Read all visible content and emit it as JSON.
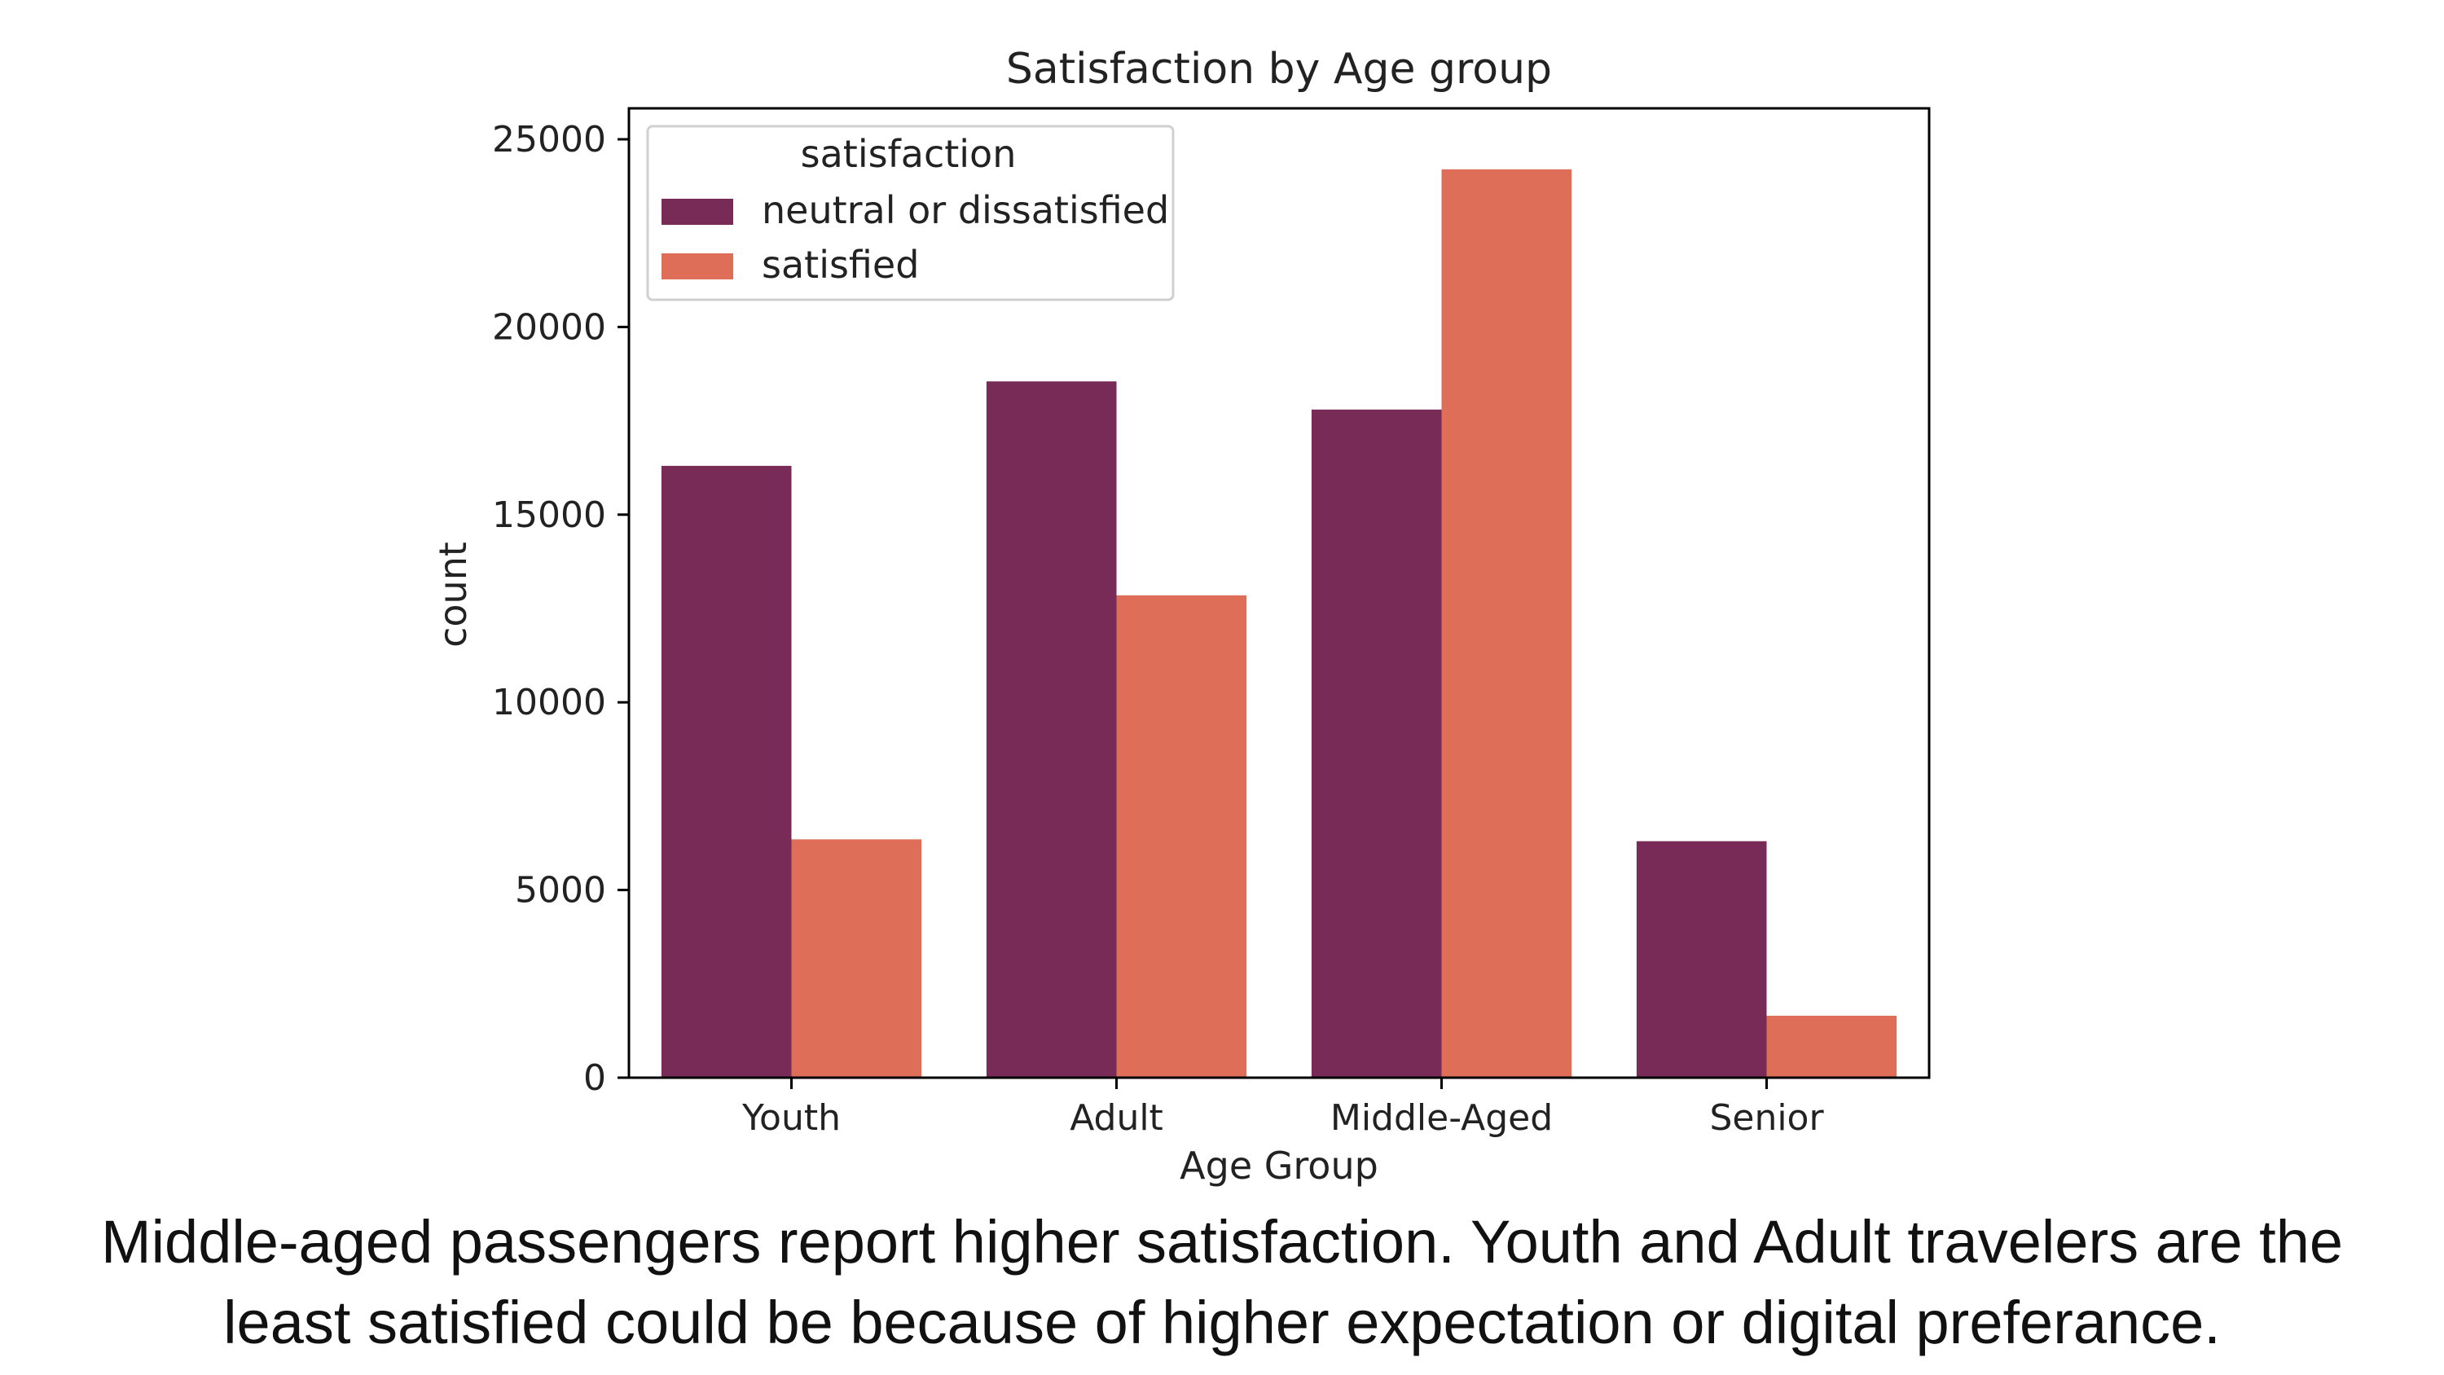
{
  "chart_data": {
    "type": "bar",
    "title": "Satisfaction by Age group",
    "xlabel": "Age Group",
    "ylabel": "count",
    "categories": [
      "Youth",
      "Adult",
      "Middle-Aged",
      "Senior"
    ],
    "ylim": [
      0,
      25000
    ],
    "yticks": [
      "0",
      "5000",
      "10000",
      "15000",
      "20000",
      "25000"
    ],
    "grid": false,
    "legend": {
      "title": "satisfaction",
      "placement": "top-left"
    },
    "series": [
      {
        "name": "neutral or dissatisfied",
        "color": "#782b56",
        "values": [
          16300,
          18550,
          17800,
          6300
        ]
      },
      {
        "name": "satisfied",
        "color": "#df6e58",
        "values": [
          6350,
          12850,
          24200,
          1650
        ]
      }
    ]
  },
  "caption": {
    "line1": "Middle-aged passengers report higher satisfaction. Youth and Adult travelers are the",
    "line2": "least satisfied could be because of higher expectation or digital preferance."
  }
}
